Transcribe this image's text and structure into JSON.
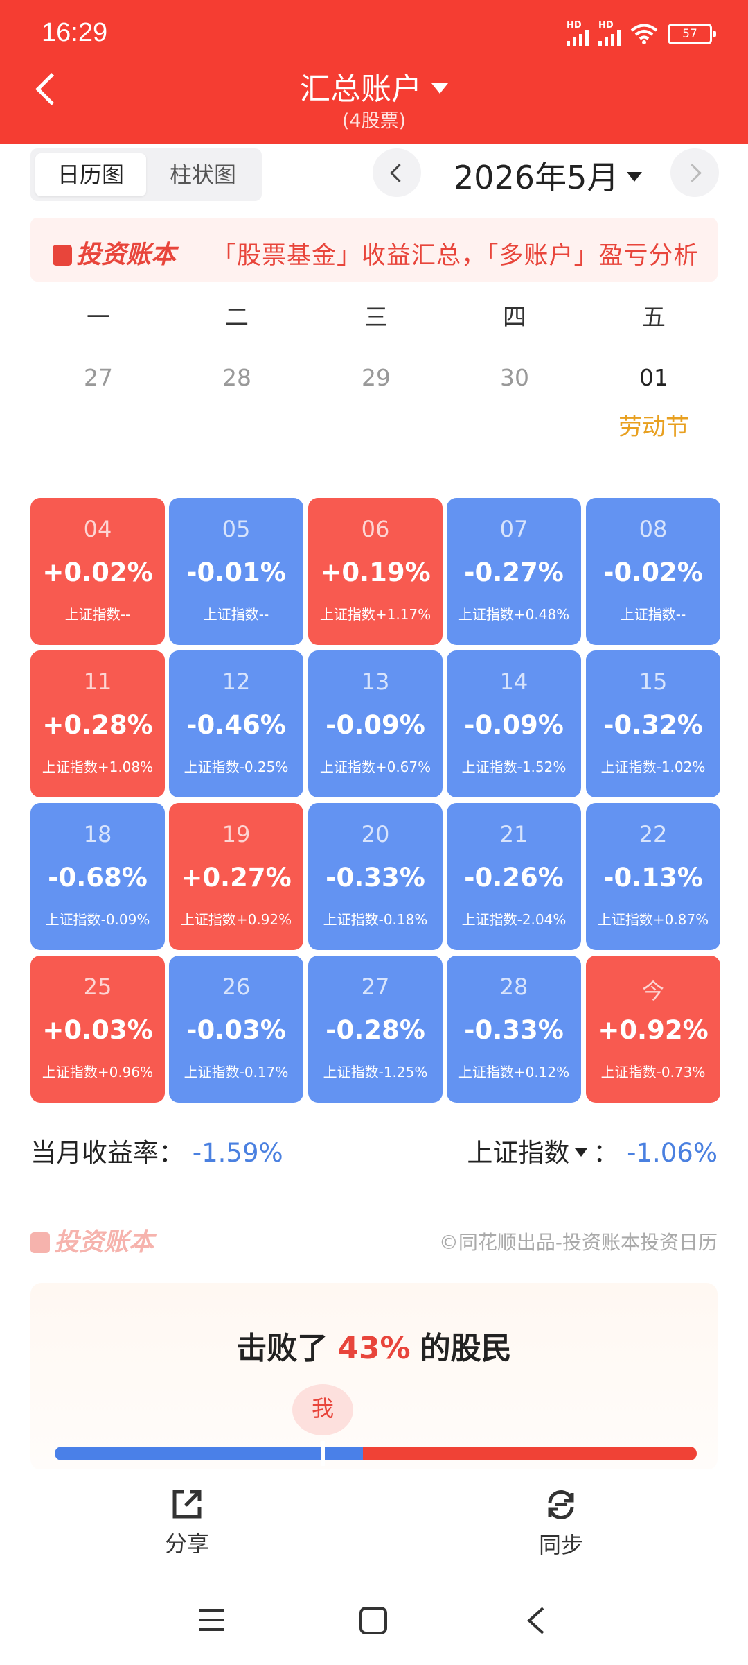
{
  "status": {
    "time": "16:29",
    "signal1": "HD",
    "signal2": "HD",
    "battery": "57"
  },
  "header": {
    "title": "汇总账户",
    "subtitle": "(4股票)"
  },
  "view_tabs": [
    {
      "label": "日历图"
    },
    {
      "label": "柱状图"
    }
  ],
  "month_selector": {
    "label": "2026年5月"
  },
  "banner": {
    "logo": "投资账本",
    "text": "「股票基金」收益汇总，「多账户」盈亏分析"
  },
  "weekdays": [
    "一",
    "二",
    "三",
    "四",
    "五"
  ],
  "prev_days": [
    "27",
    "28",
    "29",
    "30",
    "01"
  ],
  "holiday": "劳动节",
  "days": [
    {
      "day": "04",
      "pct": "+0.02%",
      "index": "上证指数--",
      "trend": "up"
    },
    {
      "day": "05",
      "pct": "-0.01%",
      "index": "上证指数--",
      "trend": "down"
    },
    {
      "day": "06",
      "pct": "+0.19%",
      "index": "上证指数+1.17%",
      "trend": "up"
    },
    {
      "day": "07",
      "pct": "-0.27%",
      "index": "上证指数+0.48%",
      "trend": "down"
    },
    {
      "day": "08",
      "pct": "-0.02%",
      "index": "上证指数--",
      "trend": "down"
    },
    {
      "day": "11",
      "pct": "+0.28%",
      "index": "上证指数+1.08%",
      "trend": "up"
    },
    {
      "day": "12",
      "pct": "-0.46%",
      "index": "上证指数-0.25%",
      "trend": "down"
    },
    {
      "day": "13",
      "pct": "-0.09%",
      "index": "上证指数+0.67%",
      "trend": "down"
    },
    {
      "day": "14",
      "pct": "-0.09%",
      "index": "上证指数-1.52%",
      "trend": "down"
    },
    {
      "day": "15",
      "pct": "-0.32%",
      "index": "上证指数-1.02%",
      "trend": "down"
    },
    {
      "day": "18",
      "pct": "-0.68%",
      "index": "上证指数-0.09%",
      "trend": "down"
    },
    {
      "day": "19",
      "pct": "+0.27%",
      "index": "上证指数+0.92%",
      "trend": "up"
    },
    {
      "day": "20",
      "pct": "-0.33%",
      "index": "上证指数-0.18%",
      "trend": "down"
    },
    {
      "day": "21",
      "pct": "-0.26%",
      "index": "上证指数-2.04%",
      "trend": "down"
    },
    {
      "day": "22",
      "pct": "-0.13%",
      "index": "上证指数+0.87%",
      "trend": "down"
    },
    {
      "day": "25",
      "pct": "+0.03%",
      "index": "上证指数+0.96%",
      "trend": "up"
    },
    {
      "day": "26",
      "pct": "-0.03%",
      "index": "上证指数-0.17%",
      "trend": "down"
    },
    {
      "day": "27",
      "pct": "-0.28%",
      "index": "上证指数-1.25%",
      "trend": "down"
    },
    {
      "day": "28",
      "pct": "-0.33%",
      "index": "上证指数+0.12%",
      "trend": "down"
    },
    {
      "day": "今",
      "pct": "+0.92%",
      "index": "上证指数-0.73%",
      "trend": "up"
    }
  ],
  "summary": {
    "monthly_label": "当月收益率：",
    "monthly_value": "-1.59%",
    "index_label": "上证指数",
    "index_sep": "：",
    "index_value": "-1.06%"
  },
  "footer_brand": {
    "logo": "投资账本",
    "credit": "©同花顺出品-投资账本投资日历"
  },
  "beat": {
    "prefix": "击败了",
    "percent": "43%",
    "suffix": "的股民",
    "marker": "我",
    "fraction": 0.43
  },
  "actions": [
    {
      "label": "分享"
    },
    {
      "label": "同步"
    }
  ],
  "colors": {
    "up": "#f85a50",
    "down": "#6393f2",
    "header": "#f53d32",
    "holiday": "#e8a020"
  }
}
